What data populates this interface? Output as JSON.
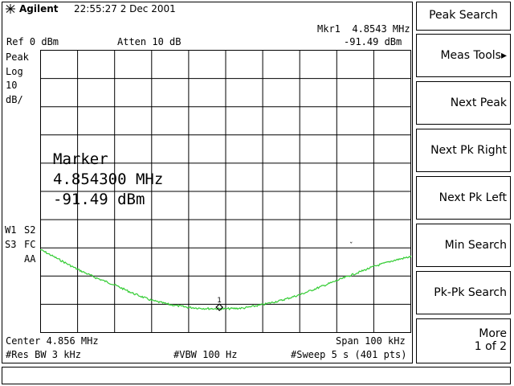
{
  "header": {
    "brand": "Agilent",
    "datetime": "22:55:27  2 Dec 2001",
    "logo_icon": "agilent-spark-icon"
  },
  "readouts": {
    "ref": "Ref 0 dBm",
    "atten": "Atten 10 dB",
    "mkr_freq": "Mkr1  4.8543 MHz",
    "mkr_amp": "-91.49 dBm",
    "detector": "Peak",
    "scale_type": "Log",
    "scale_value": "10",
    "scale_unit": "dB/",
    "w1": "W1",
    "s2": "S2",
    "s3": "S3",
    "fc": "FC",
    "aa": "AA"
  },
  "big_marker": {
    "title": "Marker",
    "freq": "4.854300 MHz",
    "amp": "-91.49 dBm"
  },
  "footer": {
    "center": "Center 4.856 MHz",
    "span": "Span 100 kHz",
    "rbw": "#Res BW 3 kHz",
    "vbw": "#VBW 100 Hz",
    "sweep": "#Sweep 5 s (401 pts)"
  },
  "marker_label": "1",
  "softkeys": {
    "title": "Peak Search",
    "meas_tools": "Meas Tools",
    "meas_tools_arrow": "▸",
    "next_peak": "Next Peak",
    "next_pk_right": "Next Pk Right",
    "next_pk_left": "Next Pk Left",
    "min_search": "Min Search",
    "pk_pk_search": "Pk-Pk Search",
    "more": "More",
    "more_page": "1 of 2"
  },
  "colors": {
    "trace": "#33cc33",
    "grid": "#000000",
    "background": "#ffffff"
  },
  "trace": {
    "start_freq_mhz": 4.806,
    "stop_freq_mhz": 4.906,
    "ref_level_dbm": 0,
    "db_per_div": 10,
    "divisions": 10,
    "points_dbm": [
      -70.5,
      -74.0,
      -77.5,
      -80.5,
      -83.0,
      -86.0,
      -88.5,
      -90.0,
      -91.0,
      -91.4,
      -91.49,
      -91.2,
      -90.0,
      -88.5,
      -86.5,
      -84.0,
      -81.5,
      -79.0,
      -76.5,
      -74.5,
      -73.0
    ]
  }
}
